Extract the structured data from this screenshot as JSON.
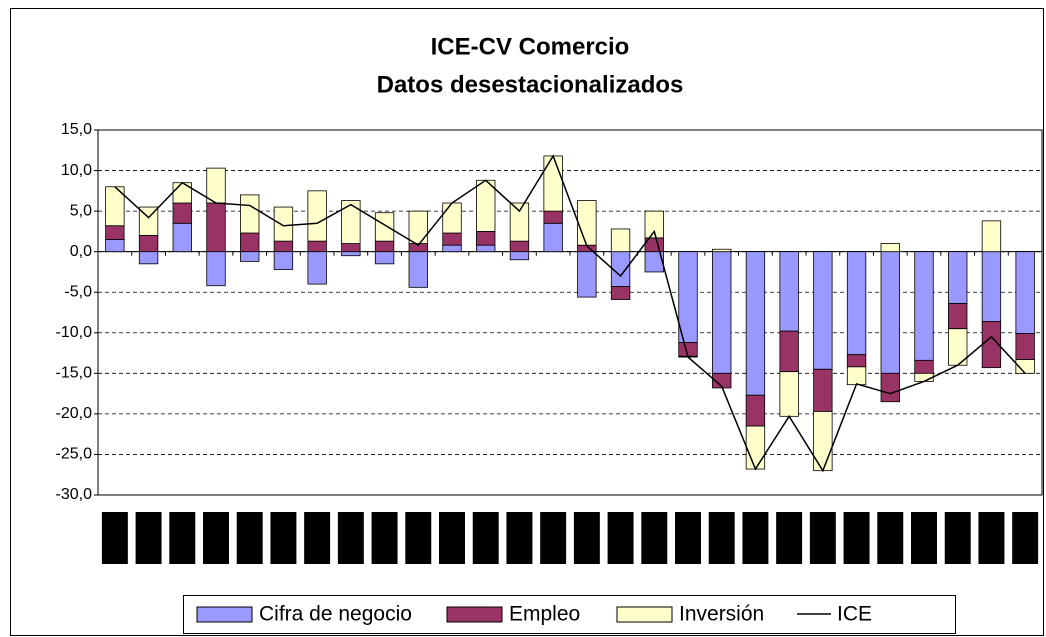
{
  "chart_data": {
    "type": "bar",
    "stacked": true,
    "title": [
      "ICE-CV Comercio",
      "Datos desestacionalizados"
    ],
    "categories": [
      null,
      null,
      null,
      null,
      null,
      null,
      null,
      null,
      null,
      null,
      null,
      null,
      null,
      null,
      null,
      null,
      null,
      null,
      null,
      null,
      null,
      null,
      null,
      null,
      null,
      null,
      null,
      null
    ],
    "series": [
      {
        "name": "Cifra de negocio",
        "color": "#9999ff",
        "values": [
          1.5,
          -1.5,
          3.5,
          -4.2,
          -1.2,
          -2.2,
          -4.0,
          -0.5,
          -1.5,
          -4.4,
          0.8,
          0.8,
          -1.0,
          3.5,
          -5.6,
          -4.3,
          -2.5,
          -11.2,
          -15.0,
          -17.7,
          -9.8,
          -14.5,
          -12.7,
          -15.0,
          -13.4,
          -6.4,
          -8.6,
          -10.1
        ]
      },
      {
        "name": "Empleo",
        "color": "#993366",
        "values": [
          1.7,
          2.0,
          2.5,
          6.0,
          2.3,
          1.3,
          1.3,
          1.0,
          1.3,
          1.0,
          1.5,
          1.7,
          1.3,
          1.5,
          0.8,
          -1.6,
          1.7,
          -1.7,
          -1.8,
          -3.8,
          -5.0,
          -5.2,
          -1.5,
          -3.5,
          -1.6,
          -3.1,
          -5.7,
          -3.2
        ]
      },
      {
        "name": "Inversión",
        "color": "#ffffcc",
        "values": [
          4.8,
          3.5,
          2.5,
          4.3,
          4.7,
          4.2,
          6.2,
          5.3,
          3.5,
          4.0,
          3.7,
          6.3,
          4.7,
          6.8,
          5.5,
          2.8,
          3.3,
          -0.1,
          0.3,
          -5.3,
          -5.5,
          -7.3,
          -2.2,
          1.0,
          -1.0,
          -4.5,
          3.8,
          -1.7
        ]
      },
      {
        "name": "ICE",
        "color": "#000000",
        "type": "line",
        "values": [
          8.0,
          4.2,
          8.5,
          6.0,
          5.7,
          3.2,
          3.5,
          5.8,
          3.3,
          0.8,
          6.0,
          8.8,
          5.0,
          11.8,
          0.7,
          -3.0,
          2.5,
          -13.0,
          -16.6,
          -26.8,
          -20.3,
          -27.0,
          -16.3,
          -17.5,
          -16.0,
          -14.0,
          -10.5,
          -15.0
        ]
      }
    ],
    "ylim": [
      -30,
      15
    ],
    "yticks": [
      {
        "value": -30,
        "label": "-30,0"
      },
      {
        "value": -25,
        "label": "-25,0"
      },
      {
        "value": -20,
        "label": "-20,0"
      },
      {
        "value": -15,
        "label": "-15,0"
      },
      {
        "value": -10,
        "label": "-10,0"
      },
      {
        "value": -5,
        "label": "-5,0"
      },
      {
        "value": 0,
        "label": "0,0"
      },
      {
        "value": 5,
        "label": "5,0"
      },
      {
        "value": 10,
        "label": "10,0"
      },
      {
        "value": 15,
        "label": "15,0"
      }
    ],
    "grid": true,
    "legend": "bottom"
  }
}
